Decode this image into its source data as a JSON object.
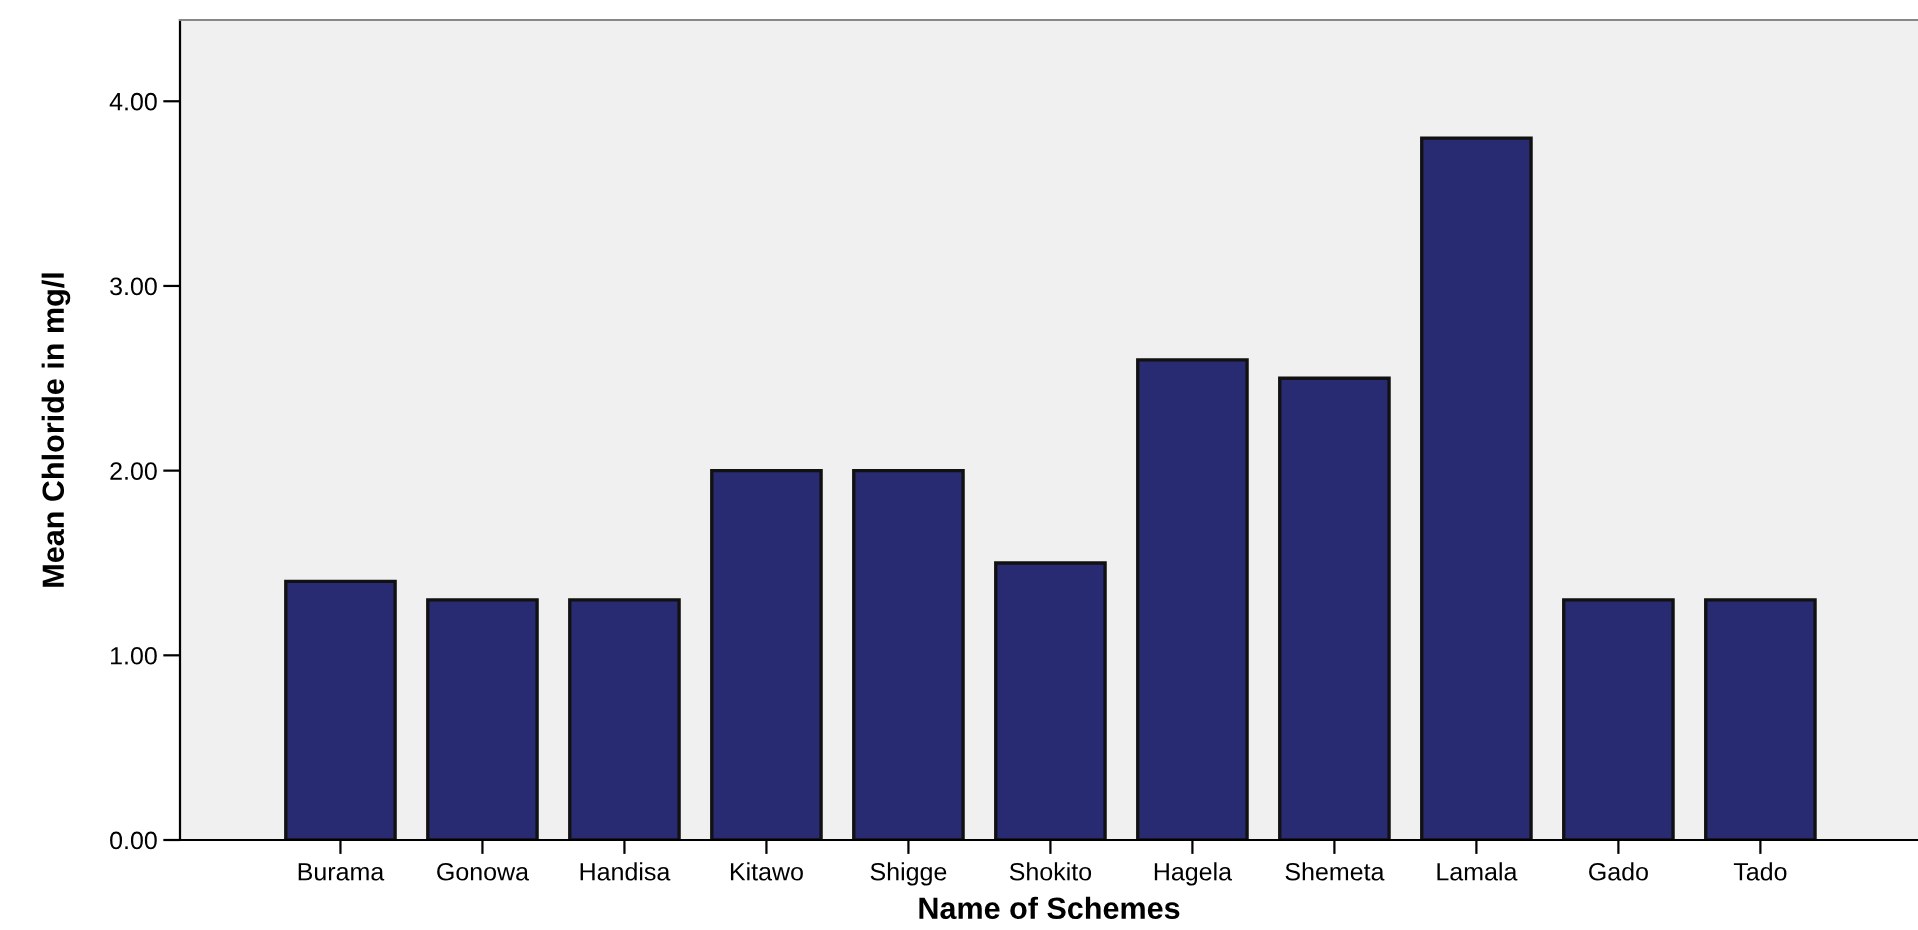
{
  "chart_data": {
    "type": "bar",
    "xlabel": "Name of Schemes",
    "ylabel": "Mean Chloride in mg/l",
    "categories": [
      "Burama",
      "Gonowa",
      "Handisa",
      "Kitawo",
      "Shigge",
      "Shokito",
      "Hagela",
      "Shemeta",
      "Lamala",
      "Gado",
      "Tado"
    ],
    "values": [
      1.4,
      1.3,
      1.3,
      2.0,
      2.0,
      1.5,
      2.6,
      2.5,
      3.8,
      1.3,
      1.3
    ],
    "color": "#282a72",
    "ylim": [
      0,
      4.44
    ],
    "yticks": [
      {
        "value": 0,
        "label": "0.00"
      },
      {
        "value": 1,
        "label": "1.00"
      },
      {
        "value": 2,
        "label": "2.00"
      },
      {
        "value": 3,
        "label": "3.00"
      },
      {
        "value": 4,
        "label": "4.00"
      }
    ],
    "grid": false
  }
}
